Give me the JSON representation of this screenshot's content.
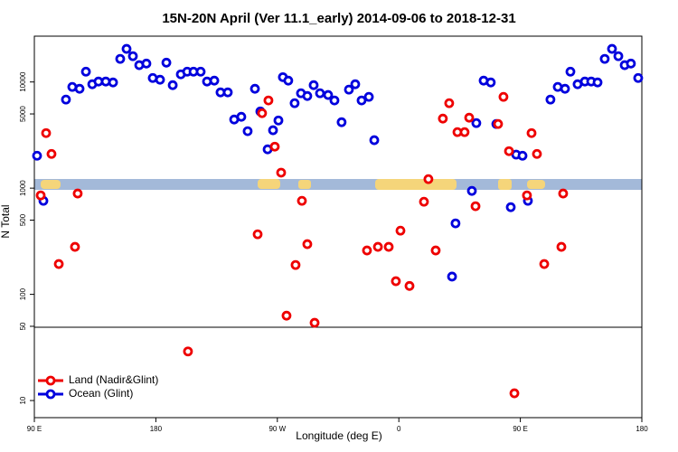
{
  "chart_data": {
    "type": "scatter",
    "title": "15N-20N April (Ver 11.1_early)   2014-09-06 to 2018-12-31",
    "x_label": "Longitude (deg E)",
    "y_label": "N Total",
    "log_y": true,
    "legend": "lower left",
    "xlim": [
      90,
      540
    ],
    "xticks": [
      {
        "value": 90,
        "label": "90 E"
      },
      180,
      {
        "value": 270,
        "label": "90 W"
      },
      {
        "value": 360,
        "label": "0"
      },
      {
        "value": 450,
        "label": "90 E"
      },
      {
        "value": 540,
        "label": "180"
      }
    ],
    "ylim": [
      6.9,
      27000
    ],
    "yticks": [
      10,
      50,
      100,
      500,
      1000,
      5000,
      10000
    ],
    "series": [
      {
        "name": "Land (Nadir&Glint)",
        "color": "#ee0000",
        "x": [
          94.7,
          98.7,
          102.7,
          108.1,
          120.1,
          122.1,
          203.8,
          255.4,
          258.7,
          263.4,
          268.1,
          272.8,
          276.8,
          283.5,
          288.2,
          292.2,
          297.6,
          336.4,
          344.5,
          352.5,
          357.8,
          361.2,
          367.9,
          378.6,
          381.9,
          387.3,
          392.6,
          397.3,
          403.4,
          408.7,
          412.1,
          416.8,
          433.5,
          437.5,
          441.6,
          445.6,
          454.9,
          458.3,
          462.3,
          467.7,
          480.4,
          481.7
        ],
        "values": [
          855,
          3300,
          2100,
          193,
          280,
          890,
          29,
          368,
          5080,
          6700,
          2460,
          1400,
          63,
          189,
          760,
          297,
          54,
          259,
          280,
          280,
          133,
          398,
          120,
          745,
          1216,
          259,
          4520,
          6310,
          3370,
          3370,
          4610,
          676,
          4020,
          7240,
          2230,
          11.7,
          855,
          3300,
          2100,
          193,
          280,
          890
        ]
      },
      {
        "name": "Ocean (Glint)",
        "color": "#0000dd",
        "x": [
          92.0,
          96.7,
          113.4,
          118.1,
          123.5,
          128.2,
          132.9,
          137.5,
          142.9,
          148.3,
          153.6,
          158.3,
          163.0,
          167.7,
          173.0,
          177.7,
          183.1,
          187.8,
          192.5,
          198.5,
          203.2,
          207.9,
          213.2,
          217.9,
          223.3,
          227.9,
          233.3,
          238.0,
          243.3,
          248.0,
          253.4,
          257.4,
          262.8,
          266.8,
          270.8,
          274.1,
          278.1,
          282.8,
          287.5,
          292.2,
          296.9,
          301.6,
          307.6,
          312.3,
          317.6,
          323.0,
          327.7,
          332.4,
          337.8,
          341.8,
          399.4,
          402.0,
          414.1,
          417.4,
          422.8,
          428.1,
          432.2,
          442.9,
          446.9,
          451.6,
          455.6,
          472.3,
          477.7,
          483.1,
          487.1,
          492.4,
          497.8,
          502.5,
          507.2,
          512.5,
          517.9,
          522.6,
          527.3,
          531.9,
          537.3
        ],
        "values": [
          2020,
          760,
          6830,
          8980,
          8630,
          12500,
          9520,
          10100,
          10100,
          9900,
          16500,
          20500,
          17500,
          14400,
          14900,
          10900,
          10500,
          15200,
          9330,
          11800,
          12500,
          12500,
          12500,
          10100,
          10300,
          7980,
          7980,
          4430,
          4700,
          3440,
          8630,
          5280,
          2320,
          3510,
          4340,
          11100,
          10300,
          6310,
          7830,
          7380,
          9330,
          7830,
          7540,
          6700,
          4180,
          8470,
          9520,
          6700,
          7240,
          2830,
          147,
          466,
          942,
          4100,
          10300,
          9900,
          4020,
          662,
          2070,
          2020,
          760,
          6830,
          8980,
          8630,
          12500,
          9520,
          10100,
          10100,
          9900,
          16500,
          20500,
          17500,
          14400,
          14900,
          10900
        ]
      }
    ]
  }
}
